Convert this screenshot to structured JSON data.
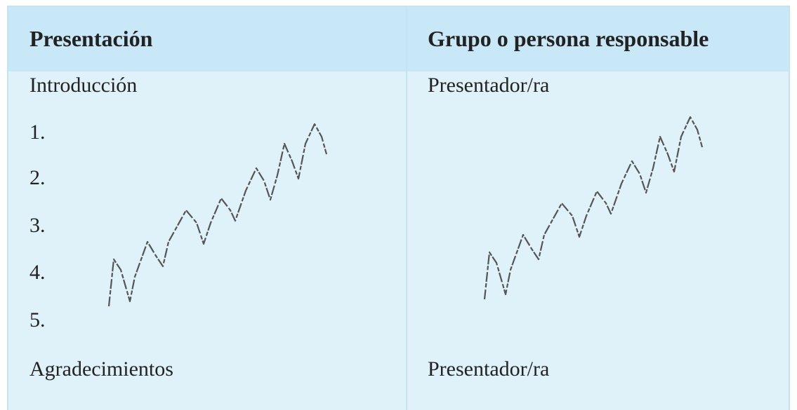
{
  "header": {
    "columns": [
      "Presentación",
      "Grupo o persona responsable"
    ]
  },
  "table": {
    "rows": [
      [
        "Introducción",
        "Presentador/ra"
      ],
      [
        "1."
      ],
      [
        "2."
      ],
      [
        "3."
      ],
      [
        "4."
      ],
      [
        "5."
      ],
      [
        "Agradecimientos",
        "Presentador/ra"
      ]
    ]
  }
}
